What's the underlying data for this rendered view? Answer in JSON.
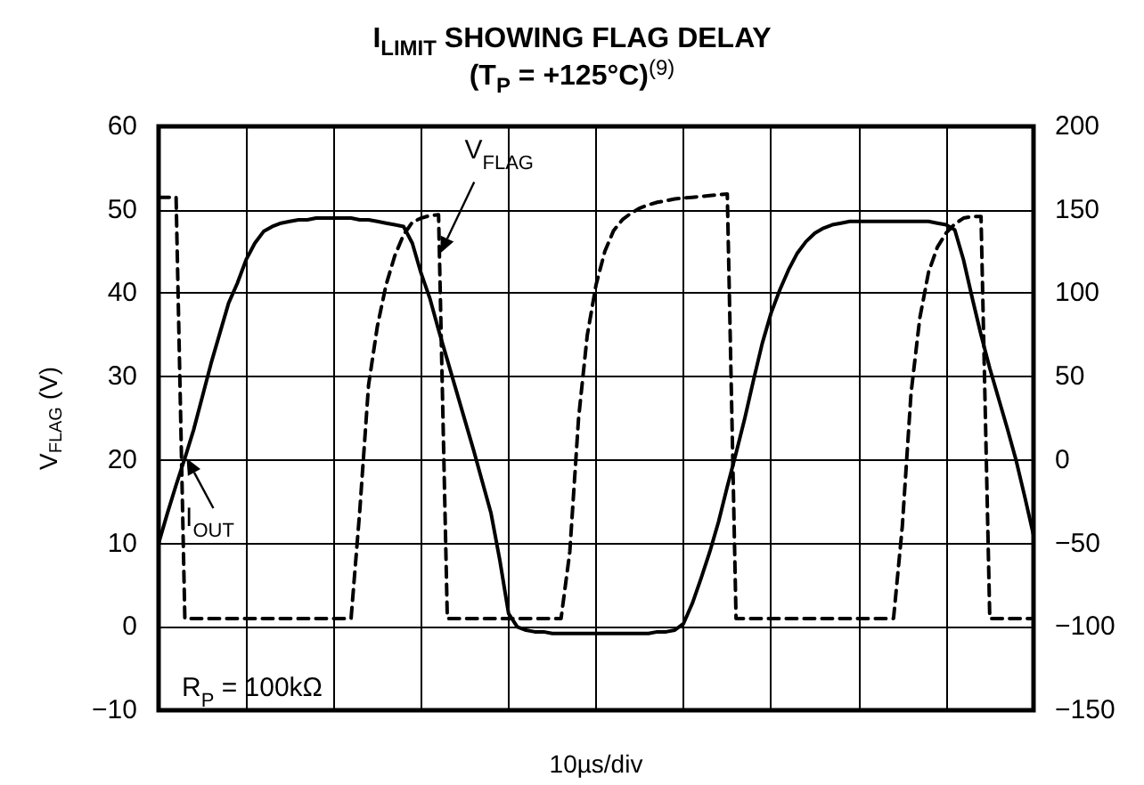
{
  "chart_data": {
    "type": "line",
    "title": "I$_{LIMIT}$ SHOWING FLAG DELAY",
    "subtitle": "(T$_{P}$ = +125°C)$^{(9)}$",
    "xlabel": "10µs/div",
    "ylabel": "V$_{FLAG}$ (V)",
    "annotations": [
      "R$_{P}$ = 100kΩ"
    ],
    "categories": [
      null,
      null,
      null,
      null,
      null,
      null,
      null,
      null,
      null,
      null,
      null,
      null,
      null,
      null,
      null,
      null,
      null,
      null,
      null,
      null,
      null,
      null,
      null,
      null,
      null,
      null,
      null,
      null,
      null,
      null,
      null,
      null,
      null,
      null,
      null,
      null,
      null,
      null,
      null,
      null,
      null,
      null,
      null,
      null,
      null,
      null,
      null,
      null,
      null,
      null,
      null,
      null,
      null,
      null,
      null,
      null,
      null,
      null,
      null,
      null,
      null,
      null,
      null,
      null,
      null,
      null,
      null,
      null,
      null,
      null,
      null,
      null,
      null,
      null,
      null,
      null,
      null,
      null,
      null,
      null,
      null,
      null,
      null,
      null,
      null,
      null,
      null,
      null,
      null,
      null,
      null,
      null,
      null,
      null,
      null,
      null,
      null,
      null,
      null,
      null,
      null
    ],
    "series": [
      {
        "name": "V$_{FLAG}$",
        "color": "#000000",
        "line_style": "dashed",
        "values": [
          51.5,
          51.5,
          51.5,
          1,
          1,
          1,
          1,
          1,
          1,
          1,
          1,
          1,
          1,
          1,
          1,
          1,
          1,
          1,
          1,
          1,
          1,
          1,
          1,
          14,
          29,
          36,
          41,
          44.5,
          47,
          48.5,
          49,
          49.3,
          49.4,
          1,
          1,
          1,
          1,
          1,
          1,
          1,
          1,
          1,
          1,
          1,
          1,
          1,
          1,
          9,
          25,
          35,
          41,
          45,
          47.5,
          48.8,
          49.6,
          50.2,
          50.6,
          50.9,
          51.1,
          51.3,
          51.4,
          51.5,
          51.6,
          51.7,
          51.8,
          51.9,
          1,
          1,
          1,
          1,
          1,
          1,
          1,
          1,
          1,
          1,
          1,
          1,
          1,
          1,
          1,
          1,
          1,
          1,
          1,
          12,
          28,
          37,
          42.5,
          45.5,
          47.2,
          48.3,
          49,
          49.2,
          49.2,
          1,
          1,
          1,
          1,
          1,
          1
        ]
      },
      {
        "name": "I$_{OUT}$",
        "color": "#000000",
        "line_style": "solid",
        "axis": "y2",
        "values": [
          -50,
          -32,
          -15,
          1,
          18,
          38,
          58,
          76,
          94,
          106,
          120,
          130,
          137,
          140,
          142,
          143,
          144,
          144,
          145,
          145,
          145,
          145,
          145,
          144,
          144,
          143,
          142,
          141,
          140,
          130,
          112,
          97,
          78,
          60,
          42,
          24,
          6,
          -13,
          -32,
          -60,
          -92,
          -100,
          -102,
          -103,
          -103,
          -104,
          -104,
          -104,
          -104,
          -104,
          -104,
          -104,
          -104,
          -104,
          -104,
          -104,
          -104,
          -103,
          -103,
          -102,
          -98,
          -86,
          -71,
          -55,
          -37,
          -16,
          4,
          25,
          48,
          70,
          88,
          102,
          114,
          124,
          131,
          136,
          139,
          141,
          142,
          143,
          143,
          143,
          143,
          143,
          143,
          143,
          143,
          143,
          143,
          142,
          141,
          138,
          120,
          97,
          75,
          55,
          37,
          19,
          0,
          -22,
          -45
        ]
      }
    ],
    "ylim": [
      -10,
      60
    ],
    "yticks": [
      {
        "value": -10,
        "label": "−10"
      },
      0,
      10,
      20,
      30,
      40,
      50,
      60
    ],
    "y2lim": [
      -150,
      200
    ],
    "y2ticks": [
      {
        "value": -150,
        "label": "−150"
      },
      {
        "value": -100,
        "label": "−100"
      },
      {
        "value": -50,
        "label": "−50"
      },
      0,
      50,
      100,
      150,
      200
    ],
    "grid": true
  }
}
